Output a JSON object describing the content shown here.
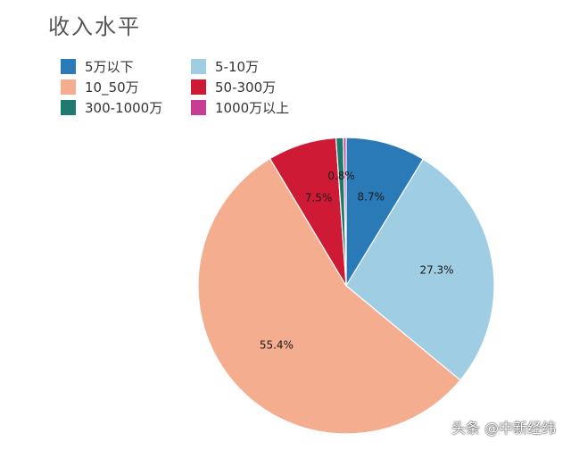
{
  "chart_data": {
    "type": "pie",
    "title": "收入水平",
    "legend_position": "top-left",
    "slices": [
      {
        "label": "5万以下",
        "value": 8.7,
        "display": "8.7%",
        "color": "#2a7ab8"
      },
      {
        "label": "5-10万",
        "value": 27.3,
        "display": "27.3%",
        "color": "#9fcde3"
      },
      {
        "label": "10_50万",
        "value": 55.4,
        "display": "55.4%",
        "color": "#f4ad8f"
      },
      {
        "label": "50-300万",
        "value": 7.5,
        "display": "7.5%",
        "color": "#cf1a36"
      },
      {
        "label": "300-1000万",
        "value": 0.8,
        "display": "0.8%",
        "color": "#1f7a6e"
      },
      {
        "label": "1000万以上",
        "value": 0.3,
        "display": "",
        "color": "#c83c96"
      }
    ]
  },
  "watermark": "头条 @中新经纬"
}
